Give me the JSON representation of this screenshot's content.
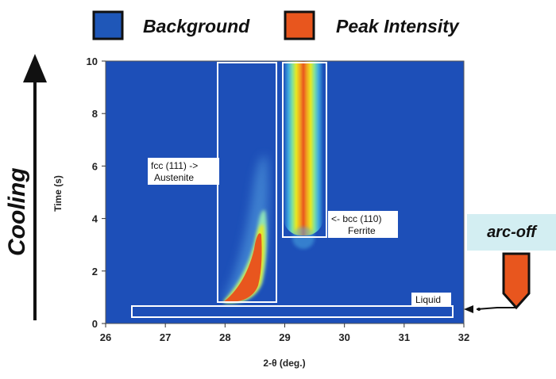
{
  "colors": {
    "background": "#1d4fb8",
    "peak": "#e8561e",
    "legend_bg": "#1f57b8",
    "legend_peak": "#e8561e",
    "arcoff_box": "#d3eef2"
  },
  "legend": {
    "background_label": "Background",
    "peak_label": "Peak Intensity"
  },
  "side": {
    "cooling_label": "Cooling",
    "arcoff_label": "arc-off"
  },
  "chart_data": {
    "type": "heatmap",
    "title": "",
    "xlabel": "2-θ (deg.)",
    "ylabel": "Time (s)",
    "xlim": [
      26,
      32
    ],
    "ylim": [
      0,
      10
    ],
    "xticks": [
      "26",
      "27",
      "28",
      "29",
      "30",
      "31",
      "32"
    ],
    "yticks": [
      "0",
      "2",
      "4",
      "6",
      "8",
      "10"
    ],
    "color_scale": [
      "Background",
      "Peak Intensity"
    ],
    "features": [
      {
        "name": "fcc (111) -> Austenite",
        "label_line1": "fcc (111) ->",
        "label_line2": "Austenite",
        "region": {
          "x": [
            27.85,
            28.85
          ],
          "y": [
            0.7,
            10
          ]
        },
        "peak_track": [
          [
            27.95,
            0.75
          ],
          [
            28.25,
            1.5
          ],
          [
            28.5,
            2.8
          ],
          [
            28.62,
            4.3
          ]
        ]
      },
      {
        "name": "<- bcc (110) Ferrite",
        "label_line1": "<- bcc (110)",
        "label_line2": "Ferrite",
        "region": {
          "x": [
            28.85,
            29.65
          ],
          "y": [
            3.2,
            10
          ]
        },
        "peak_center": 29.25,
        "peak_span_y": [
          3.6,
          10
        ]
      },
      {
        "name": "Liquid",
        "label_line1": "Liquid",
        "region": {
          "x": [
            26.45,
            31.85
          ],
          "y": [
            0.2,
            0.6
          ]
        }
      }
    ]
  }
}
